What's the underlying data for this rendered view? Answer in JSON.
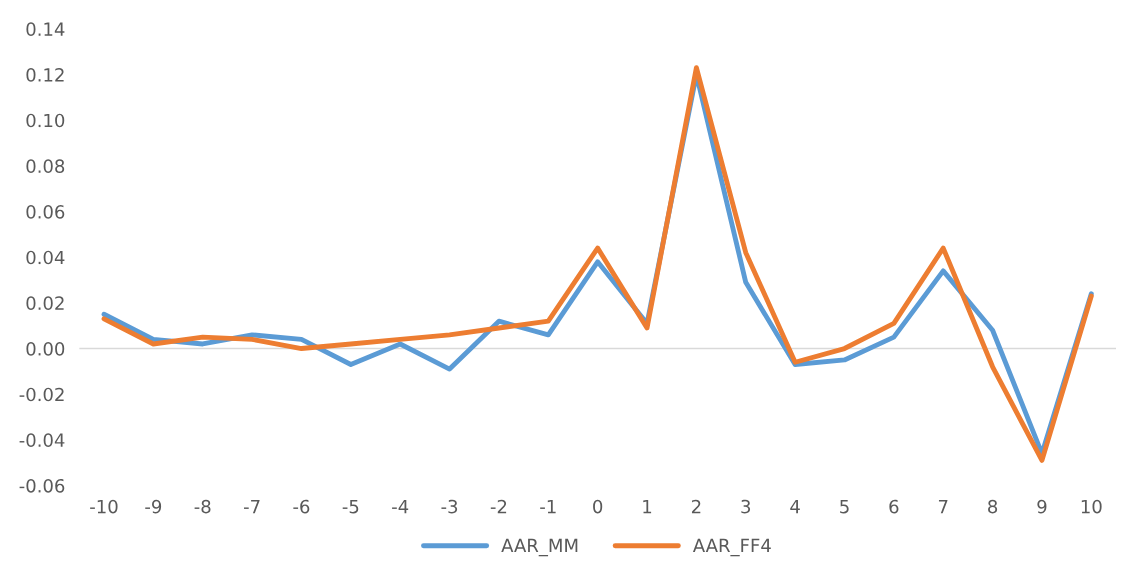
{
  "chart_data": {
    "type": "line",
    "categories": [
      "-10",
      "-9",
      "-8",
      "-7",
      "-6",
      "-5",
      "-4",
      "-3",
      "-2",
      "-1",
      "0",
      "1",
      "2",
      "3",
      "4",
      "5",
      "6",
      "7",
      "8",
      "9",
      "10"
    ],
    "series": [
      {
        "name": "AAR_MM",
        "color": "#5b9bd5",
        "values": [
          0.015,
          0.004,
          0.002,
          0.006,
          0.004,
          -0.007,
          0.002,
          -0.009,
          0.012,
          0.006,
          0.038,
          0.011,
          0.12,
          0.029,
          -0.007,
          -0.005,
          0.005,
          0.034,
          0.008,
          -0.046,
          0.024
        ]
      },
      {
        "name": "AAR_FF4",
        "color": "#ed7d31",
        "values": [
          0.013,
          0.002,
          0.005,
          0.004,
          0.0,
          0.002,
          0.004,
          0.006,
          0.009,
          0.012,
          0.044,
          0.009,
          0.123,
          0.042,
          -0.006,
          0.0,
          0.011,
          0.044,
          -0.008,
          -0.049,
          0.023
        ]
      }
    ],
    "ylim": [
      -0.06,
      0.14
    ],
    "yticks": [
      {
        "value": -0.06,
        "label": "-0.06"
      },
      {
        "value": -0.04,
        "label": "-0.04"
      },
      {
        "value": -0.02,
        "label": "-0.02"
      },
      {
        "value": 0,
        "label": "0.00"
      },
      {
        "value": 0.02,
        "label": "0.02"
      },
      {
        "value": 0.04,
        "label": "0.04"
      },
      {
        "value": 0.06,
        "label": "0.06"
      },
      {
        "value": 0.08,
        "label": "0.08"
      },
      {
        "value": 0.1,
        "label": "0.10"
      },
      {
        "value": 0.12,
        "label": "0.12"
      },
      {
        "value": 0.14,
        "label": "0.14"
      }
    ],
    "ref_lines": [
      {
        "axis": "y",
        "value": 0,
        "color": "#d9d9d9"
      }
    ],
    "grid": false,
    "legend": "bottom",
    "marker": "none",
    "line_style": "solid"
  }
}
